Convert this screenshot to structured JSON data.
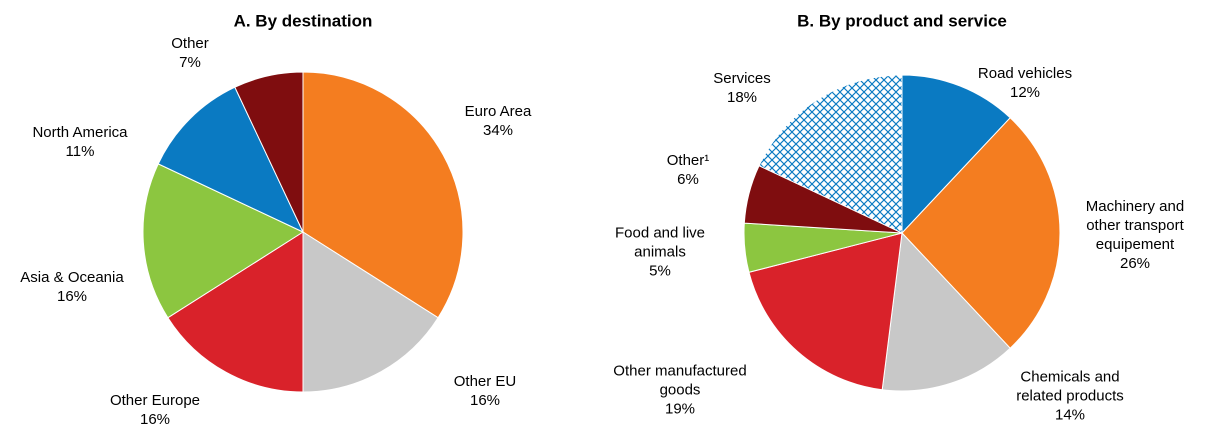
{
  "chart_data": [
    {
      "type": "pie",
      "title": "A. By destination",
      "categories": [
        "Euro Area",
        "Other EU",
        "Other Europe",
        "Asia & Oceania",
        "North America",
        "Other"
      ],
      "values": [
        34,
        16,
        16,
        16,
        11,
        7
      ],
      "value_labels": [
        "34%",
        "16%",
        "16%",
        "16%",
        "11%",
        "7%"
      ],
      "colors": [
        "#f47d20",
        "#c8c8c8",
        "#d9222a",
        "#8cc640",
        "#0a7ac2",
        "#7f0d0f"
      ],
      "patterns": [
        null,
        null,
        null,
        null,
        null,
        null
      ]
    },
    {
      "type": "pie",
      "title": "B. By product and service",
      "categories": [
        "Road vehicles",
        "Machinery and other transport equipement",
        "Chemicals and related products",
        "Other manufactured goods",
        "Food and live animals",
        "Other¹",
        "Services"
      ],
      "values": [
        12,
        26,
        14,
        19,
        5,
        6,
        18
      ],
      "value_labels": [
        "12%",
        "26%",
        "14%",
        "19%",
        "5%",
        "6%",
        "18%"
      ],
      "colors": [
        "#0a7ac2",
        "#f47d20",
        "#c8c8c8",
        "#d9222a",
        "#8cc640",
        "#7f0d0f",
        "#0a7ac2"
      ],
      "patterns": [
        null,
        null,
        null,
        null,
        null,
        null,
        "crosshatch"
      ]
    }
  ]
}
